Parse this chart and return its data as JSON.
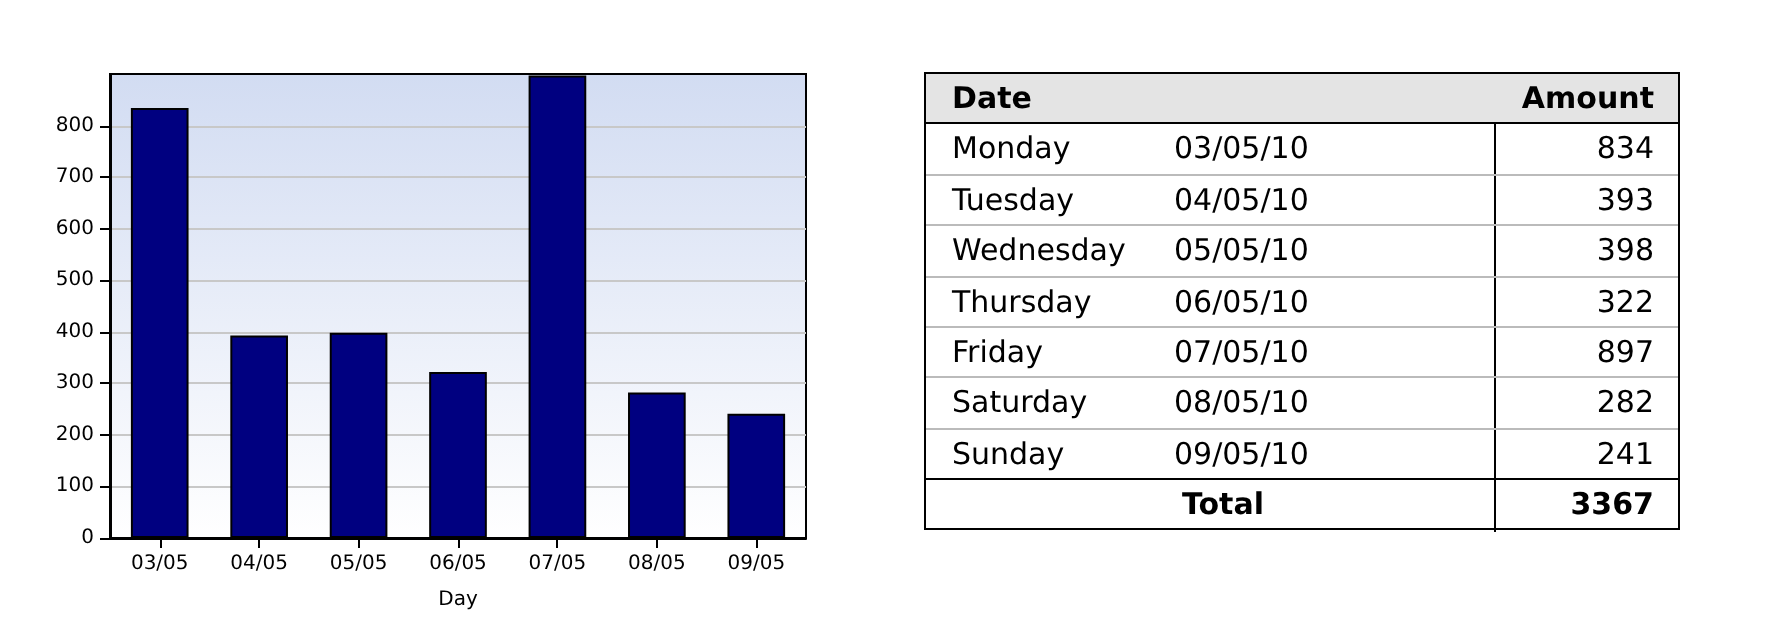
{
  "chart_data": [
    {
      "type": "bar",
      "xlabel": "Day",
      "categories": [
        "03/05",
        "04/05",
        "05/05",
        "06/05",
        "07/05",
        "08/05",
        "09/05"
      ],
      "values": [
        834,
        393,
        398,
        322,
        897,
        282,
        241
      ],
      "color": "#000080",
      "ylim": [
        0,
        900
      ],
      "yticks": [
        0,
        100,
        200,
        300,
        400,
        500,
        600,
        700,
        800
      ],
      "grid": "y"
    },
    {
      "type": "other",
      "annotations": [
        "Date",
        "Amount",
        "Monday",
        "03/05/10",
        "834",
        "Tuesday",
        "04/05/10",
        "393",
        "Wednesday",
        "05/05/10",
        "398",
        "Thursday",
        "06/05/10",
        "322",
        "Friday",
        "07/05/10",
        "897",
        "Saturday",
        "08/05/10",
        "282",
        "Sunday",
        "09/05/10",
        "241",
        "Total",
        "3367"
      ]
    }
  ]
}
